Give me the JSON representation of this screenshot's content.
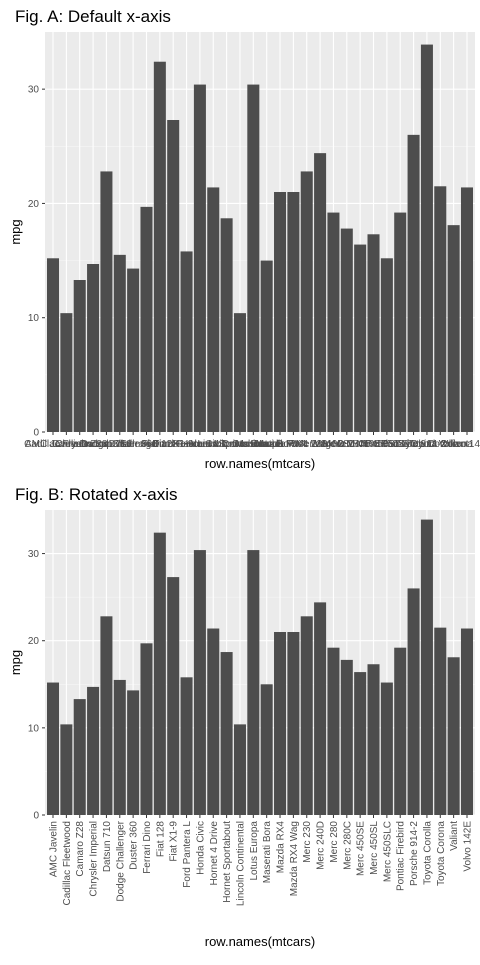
{
  "chart_data": [
    {
      "type": "bar",
      "title": "Fig. A: Default x-axis",
      "xlabel": "row.names(mtcars)",
      "ylabel": "mpg",
      "ylim": [
        0,
        35
      ],
      "yticks": [
        0,
        10,
        20,
        30
      ],
      "grid": true,
      "x_tick_rotation": 0,
      "bar_color": "#4d4d4d",
      "panel_color": "#ebebeb",
      "categories": [
        "AMC Javelin",
        "Cadillac Fleetwood",
        "Camaro Z28",
        "Chrysler Imperial",
        "Datsun 710",
        "Dodge Challenger",
        "Duster 360",
        "Ferrari Dino",
        "Fiat 128",
        "Fiat X1-9",
        "Ford Pantera L",
        "Honda Civic",
        "Hornet 4 Drive",
        "Hornet Sportabout",
        "Lincoln Continental",
        "Lotus Europa",
        "Maserati Bora",
        "Mazda RX4",
        "Mazda RX4 Wag",
        "Merc 230",
        "Merc 240D",
        "Merc 280",
        "Merc 280C",
        "Merc 450SE",
        "Merc 450SL",
        "Merc 450SLC",
        "Pontiac Firebird",
        "Porsche 914-2",
        "Toyota Corolla",
        "Toyota Corona",
        "Valiant",
        "Volvo 142E"
      ],
      "values": [
        15.2,
        10.4,
        13.3,
        14.7,
        22.8,
        15.5,
        14.3,
        19.7,
        32.4,
        27.3,
        15.8,
        30.4,
        21.4,
        18.7,
        10.4,
        30.4,
        15.0,
        21.0,
        21.0,
        22.8,
        24.4,
        19.2,
        17.8,
        16.4,
        17.3,
        15.2,
        19.2,
        26.0,
        33.9,
        21.5,
        18.1,
        21.4
      ]
    },
    {
      "type": "bar",
      "title": "Fig. B: Rotated x-axis",
      "xlabel": "row.names(mtcars)",
      "ylabel": "mpg",
      "ylim": [
        0,
        35
      ],
      "yticks": [
        0,
        10,
        20,
        30
      ],
      "grid": true,
      "x_tick_rotation": 90,
      "bar_color": "#4d4d4d",
      "panel_color": "#ebebeb",
      "categories": [
        "AMC Javelin",
        "Cadillac Fleetwood",
        "Camaro Z28",
        "Chrysler Imperial",
        "Datsun 710",
        "Dodge Challenger",
        "Duster 360",
        "Ferrari Dino",
        "Fiat 128",
        "Fiat X1-9",
        "Ford Pantera L",
        "Honda Civic",
        "Hornet 4 Drive",
        "Hornet Sportabout",
        "Lincoln Continental",
        "Lotus Europa",
        "Maserati Bora",
        "Mazda RX4",
        "Mazda RX4 Wag",
        "Merc 230",
        "Merc 240D",
        "Merc 280",
        "Merc 280C",
        "Merc 450SE",
        "Merc 450SL",
        "Merc 450SLC",
        "Pontiac Firebird",
        "Porsche 914-2",
        "Toyota Corolla",
        "Toyota Corona",
        "Valiant",
        "Volvo 142E"
      ],
      "values": [
        15.2,
        10.4,
        13.3,
        14.7,
        22.8,
        15.5,
        14.3,
        19.7,
        32.4,
        27.3,
        15.8,
        30.4,
        21.4,
        18.7,
        10.4,
        30.4,
        15.0,
        21.0,
        21.0,
        22.8,
        24.4,
        19.2,
        17.8,
        16.4,
        17.3,
        15.2,
        19.2,
        26.0,
        33.9,
        21.5,
        18.1,
        21.4
      ]
    }
  ]
}
